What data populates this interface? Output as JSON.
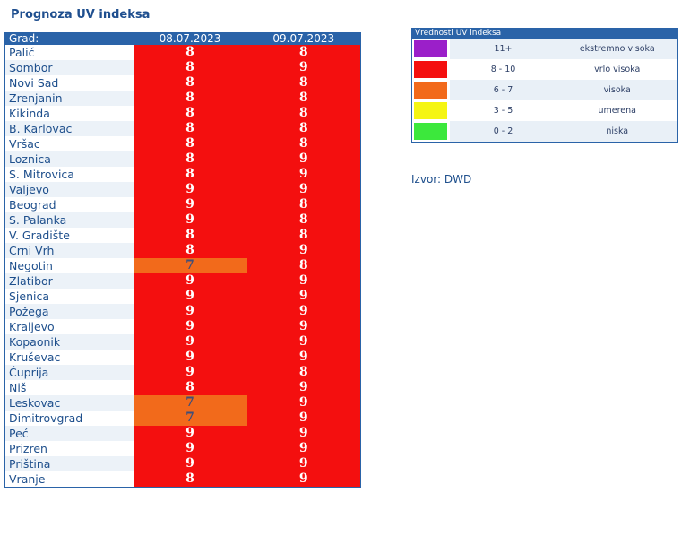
{
  "page": {
    "title": "Prognoza UV indeksa",
    "source": "Izvor: DWD"
  },
  "table": {
    "header": {
      "city": "Grad:",
      "day1": "08.07.2023",
      "day2": "09.07.2023"
    },
    "rows": [
      {
        "city": "Palić",
        "d1": "8",
        "d2": "8",
        "c1": "red",
        "c2": "red"
      },
      {
        "city": "Sombor",
        "d1": "8",
        "d2": "9",
        "c1": "red",
        "c2": "red"
      },
      {
        "city": "Novi Sad",
        "d1": "8",
        "d2": "8",
        "c1": "red",
        "c2": "red"
      },
      {
        "city": "Zrenjanin",
        "d1": "8",
        "d2": "8",
        "c1": "red",
        "c2": "red"
      },
      {
        "city": "Kikinda",
        "d1": "8",
        "d2": "8",
        "c1": "red",
        "c2": "red"
      },
      {
        "city": "B. Karlovac",
        "d1": "8",
        "d2": "8",
        "c1": "red",
        "c2": "red"
      },
      {
        "city": "Vršac",
        "d1": "8",
        "d2": "8",
        "c1": "red",
        "c2": "red"
      },
      {
        "city": "Loznica",
        "d1": "8",
        "d2": "9",
        "c1": "red",
        "c2": "red"
      },
      {
        "city": "S. Mitrovica",
        "d1": "8",
        "d2": "9",
        "c1": "red",
        "c2": "red"
      },
      {
        "city": "Valjevo",
        "d1": "9",
        "d2": "9",
        "c1": "red",
        "c2": "red"
      },
      {
        "city": "Beograd",
        "d1": "9",
        "d2": "8",
        "c1": "red",
        "c2": "red"
      },
      {
        "city": "S. Palanka",
        "d1": "9",
        "d2": "8",
        "c1": "red",
        "c2": "red"
      },
      {
        "city": "V. Gradište",
        "d1": "8",
        "d2": "8",
        "c1": "red",
        "c2": "red"
      },
      {
        "city": "Crni Vrh",
        "d1": "8",
        "d2": "9",
        "c1": "red",
        "c2": "red"
      },
      {
        "city": "Negotin",
        "d1": "7",
        "d2": "8",
        "c1": "orange",
        "c2": "red"
      },
      {
        "city": "Zlatibor",
        "d1": "9",
        "d2": "9",
        "c1": "red",
        "c2": "red"
      },
      {
        "city": "Sjenica",
        "d1": "9",
        "d2": "9",
        "c1": "red",
        "c2": "red"
      },
      {
        "city": "Požega",
        "d1": "9",
        "d2": "9",
        "c1": "red",
        "c2": "red"
      },
      {
        "city": "Kraljevo",
        "d1": "9",
        "d2": "9",
        "c1": "red",
        "c2": "red"
      },
      {
        "city": "Kopaonik",
        "d1": "9",
        "d2": "9",
        "c1": "red",
        "c2": "red"
      },
      {
        "city": "Kruševac",
        "d1": "9",
        "d2": "9",
        "c1": "red",
        "c2": "red"
      },
      {
        "city": "Ćuprija",
        "d1": "9",
        "d2": "8",
        "c1": "red",
        "c2": "red"
      },
      {
        "city": "Niš",
        "d1": "8",
        "d2": "9",
        "c1": "red",
        "c2": "red"
      },
      {
        "city": "Leskovac",
        "d1": "7",
        "d2": "9",
        "c1": "orange",
        "c2": "red"
      },
      {
        "city": "Dimitrovgrad",
        "d1": "7",
        "d2": "9",
        "c1": "orange",
        "c2": "red"
      },
      {
        "city": "Peć",
        "d1": "9",
        "d2": "9",
        "c1": "red",
        "c2": "red"
      },
      {
        "city": "Prizren",
        "d1": "9",
        "d2": "9",
        "c1": "red",
        "c2": "red"
      },
      {
        "city": "Priština",
        "d1": "9",
        "d2": "9",
        "c1": "red",
        "c2": "red"
      },
      {
        "city": "Vranje",
        "d1": "8",
        "d2": "9",
        "c1": "red",
        "c2": "red"
      }
    ]
  },
  "legend": {
    "title": "Vrednosti UV indeksa",
    "items": [
      {
        "range": "11+",
        "label": "ekstremno visoka",
        "color": "#9b1fc9"
      },
      {
        "range": "8 - 10",
        "label": "vrlo visoka",
        "color": "#f40f0f"
      },
      {
        "range": "6 - 7",
        "label": "visoka",
        "color": "#f26a1b"
      },
      {
        "range": "3 - 5",
        "label": "umerena",
        "color": "#f5f513"
      },
      {
        "range": "0 - 2",
        "label": "niska",
        "color": "#3ce83c"
      }
    ]
  }
}
